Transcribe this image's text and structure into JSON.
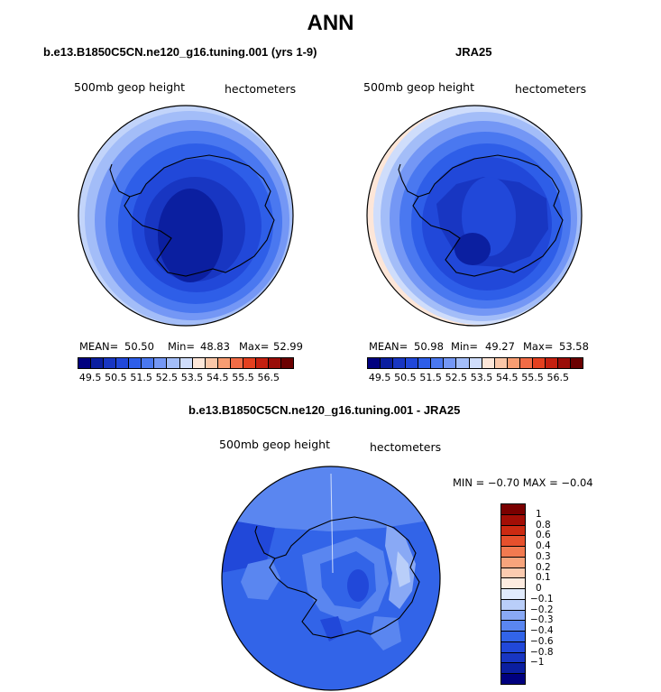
{
  "main_title": "ANN",
  "panels": [
    {
      "title": "b.e13.B1850C5CN.ne120_g16.tuning.001 (yrs 1-9)",
      "left_label": "500mb geop height",
      "right_label": "hectometers",
      "mean_label": "MEAN=",
      "mean": "50.50",
      "min_label": "Min=",
      "min": "48.83",
      "max_label": "Max=",
      "max": "52.99"
    },
    {
      "title": "JRA25",
      "left_label": "500mb geop height",
      "right_label": "hectometers",
      "mean_label": "MEAN=",
      "mean": "50.98",
      "min_label": "Min=",
      "min": "49.27",
      "max_label": "Max=",
      "max": "53.58"
    }
  ],
  "diff_panel": {
    "title": "b.e13.B1850C5CN.ne120_g16.tuning.001 - JRA25",
    "left_label": "500mb geop height",
    "right_label": "hectometers",
    "minmax": "MIN =  −0.70  MAX =  −0.04"
  },
  "abs_colorbar": {
    "colors": [
      "#00007f",
      "#0b1fa0",
      "#1836c2",
      "#2148d9",
      "#2e5ee8",
      "#4a78f0",
      "#7497f5",
      "#a3bdf8",
      "#cfddfb",
      "#fde6d8",
      "#fbc7a8",
      "#f89d72",
      "#f26c46",
      "#e4401f",
      "#c52010",
      "#9a0d08",
      "#6b0000"
    ],
    "tick_labels": [
      "49.5",
      "50.5",
      "51.5",
      "52.5",
      "53.5",
      "54.5",
      "55.5",
      "56.5"
    ]
  },
  "diff_colorbar": {
    "colors": [
      "#00007f",
      "#0b1fa0",
      "#1836c2",
      "#2148d9",
      "#3264e8",
      "#5a86f0",
      "#89a9f5",
      "#b9cef9",
      "#e1ebfd",
      "#fdebe0",
      "#fbcbb0",
      "#f7a47c",
      "#f27a50",
      "#e6502c",
      "#cc2a12",
      "#a30e06",
      "#7a0000"
    ],
    "tick_labels": [
      "1",
      "0.8",
      "0.6",
      "0.4",
      "0.3",
      "0.2",
      "0.1",
      "0",
      "−0.1",
      "−0.2",
      "−0.3",
      "−0.4",
      "−0.6",
      "−0.8",
      "−1"
    ]
  }
}
